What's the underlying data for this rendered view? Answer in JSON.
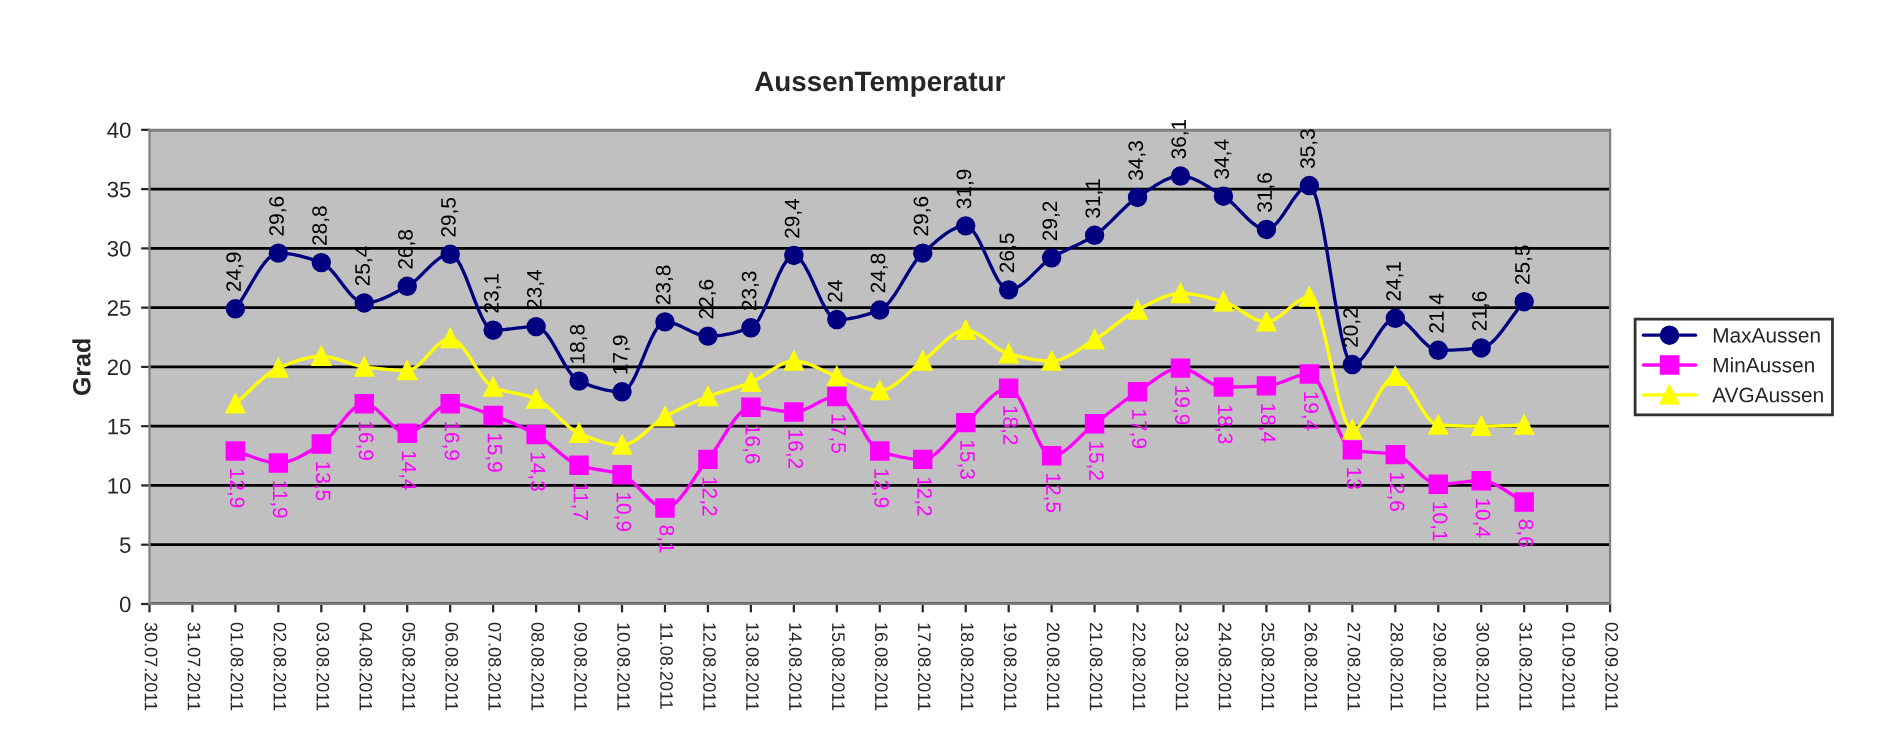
{
  "chart_data": {
    "type": "line",
    "title": "AussenTemperatur",
    "ylabel": "Grad",
    "x": [
      "2011-08-01",
      "2011-08-02",
      "2011-08-03",
      "2011-08-04",
      "2011-08-05",
      "2011-08-06",
      "2011-08-07",
      "2011-08-08",
      "2011-08-09",
      "2011-08-10",
      "2011-08-11",
      "2011-08-12",
      "2011-08-13",
      "2011-08-14",
      "2011-08-15",
      "2011-08-16",
      "2011-08-17",
      "2011-08-18",
      "2011-08-19",
      "2011-08-20",
      "2011-08-21",
      "2011-08-22",
      "2011-08-23",
      "2011-08-24",
      "2011-08-25",
      "2011-08-26",
      "2011-08-27",
      "2011-08-28",
      "2011-08-29",
      "2011-08-30",
      "2011-08-31"
    ],
    "series": [
      {
        "name": "MaxAussen",
        "color": "#000080",
        "marker": "circle",
        "values": [
          24.9,
          29.6,
          28.8,
          25.4,
          26.8,
          29.5,
          23.1,
          23.4,
          18.8,
          17.9,
          23.8,
          22.6,
          23.3,
          29.4,
          24,
          24.8,
          29.6,
          31.9,
          26.5,
          29.2,
          31.1,
          34.3,
          36.1,
          34.4,
          31.6,
          35.3,
          20.2,
          24.1,
          21.4,
          21.6,
          25.5
        ],
        "value_labels": [
          "24,9",
          "29,6",
          "28,8",
          "25,4",
          "26,8",
          "29,5",
          "23,1",
          "23,4",
          "18,8",
          "17,9",
          "23,8",
          "22,6",
          "23,3",
          "29,4",
          "24",
          "24,8",
          "29,6",
          "31,9",
          "26,5",
          "29,2",
          "31,1",
          "34,3",
          "36,1",
          "34,4",
          "31,6",
          "35,3",
          "20,2",
          "24,1",
          "21,4",
          "21,6",
          "25,5"
        ]
      },
      {
        "name": "MinAussen",
        "color": "#ff00ff",
        "marker": "square",
        "values": [
          12.9,
          11.9,
          13.5,
          16.9,
          14.4,
          16.9,
          15.9,
          14.3,
          11.7,
          10.9,
          8.1,
          12.2,
          16.6,
          16.2,
          17.5,
          12.9,
          12.2,
          15.3,
          18.2,
          12.5,
          15.2,
          17.9,
          19.9,
          18.3,
          18.4,
          19.4,
          13,
          12.6,
          10.1,
          10.4,
          8.6
        ],
        "value_labels": [
          "12,9",
          "11,9",
          "13,5",
          "16,9",
          "14,4",
          "16,9",
          "15,9",
          "14,3",
          "11,7",
          "10,9",
          "8,1",
          "12,2",
          "16,6",
          "16,2",
          "17,5",
          "12,9",
          "12,2",
          "15,3",
          "18,2",
          "12,5",
          "15,2",
          "17,9",
          "19,9",
          "18,3",
          "18,4",
          "19,4",
          "13",
          "12,6",
          "10,1",
          "10,4",
          "8,6"
        ]
      },
      {
        "name": "AVGAussen",
        "color": "#ffff00",
        "marker": "triangle",
        "values": [
          16.9,
          19.9,
          20.9,
          20.0,
          19.7,
          22.4,
          18.3,
          17.3,
          14.4,
          13.4,
          15.8,
          17.5,
          18.7,
          20.5,
          19.2,
          18.0,
          20.5,
          23.1,
          21.1,
          20.5,
          22.3,
          24.8,
          26.2,
          25.5,
          23.8,
          25.9,
          14.7,
          19.2,
          15.1,
          15.0,
          15.1
        ]
      }
    ],
    "xlim": [
      "2011-07-30",
      "2011-09-02"
    ],
    "xticks": [
      {
        "value": "2011-07-30",
        "label": "30.07.2011"
      },
      {
        "value": "2011-07-31",
        "label": "31.07.2011"
      },
      {
        "value": "2011-08-01",
        "label": "01.08.2011"
      },
      {
        "value": "2011-08-02",
        "label": "02.08.2011"
      },
      {
        "value": "2011-08-03",
        "label": "03.08.2011"
      },
      {
        "value": "2011-08-04",
        "label": "04.08.2011"
      },
      {
        "value": "2011-08-05",
        "label": "05.08.2011"
      },
      {
        "value": "2011-08-06",
        "label": "06.08.2011"
      },
      {
        "value": "2011-08-07",
        "label": "07.08.2011"
      },
      {
        "value": "2011-08-08",
        "label": "08.08.2011"
      },
      {
        "value": "2011-08-09",
        "label": "09.08.2011"
      },
      {
        "value": "2011-08-10",
        "label": "10.08.2011"
      },
      {
        "value": "2011-08-11",
        "label": "11.08.2011"
      },
      {
        "value": "2011-08-12",
        "label": "12.08.2011"
      },
      {
        "value": "2011-08-13",
        "label": "13.08.2011"
      },
      {
        "value": "2011-08-14",
        "label": "14.08.2011"
      },
      {
        "value": "2011-08-15",
        "label": "15.08.2011"
      },
      {
        "value": "2011-08-16",
        "label": "16.08.2011"
      },
      {
        "value": "2011-08-17",
        "label": "17.08.2011"
      },
      {
        "value": "2011-08-18",
        "label": "18.08.2011"
      },
      {
        "value": "2011-08-19",
        "label": "19.08.2011"
      },
      {
        "value": "2011-08-20",
        "label": "20.08.2011"
      },
      {
        "value": "2011-08-21",
        "label": "21.08.2011"
      },
      {
        "value": "2011-08-22",
        "label": "22.08.2011"
      },
      {
        "value": "2011-08-23",
        "label": "23.08.2011"
      },
      {
        "value": "2011-08-24",
        "label": "24.08.2011"
      },
      {
        "value": "2011-08-25",
        "label": "25.08.2011"
      },
      {
        "value": "2011-08-26",
        "label": "26.08.2011"
      },
      {
        "value": "2011-08-27",
        "label": "27.08.2011"
      },
      {
        "value": "2011-08-28",
        "label": "28.08.2011"
      },
      {
        "value": "2011-08-29",
        "label": "29.08.2011"
      },
      {
        "value": "2011-08-30",
        "label": "30.08.2011"
      },
      {
        "value": "2011-08-31",
        "label": "31.08.2011"
      },
      {
        "value": "2011-09-01",
        "label": "01.09.2011"
      },
      {
        "value": "2011-09-02",
        "label": "02.09.2011"
      }
    ],
    "ylim": [
      0,
      40
    ],
    "yticks": [
      0,
      5,
      10,
      15,
      20,
      25,
      30,
      35,
      40
    ],
    "grid": "y",
    "legend": "right",
    "line_style": "solid"
  }
}
